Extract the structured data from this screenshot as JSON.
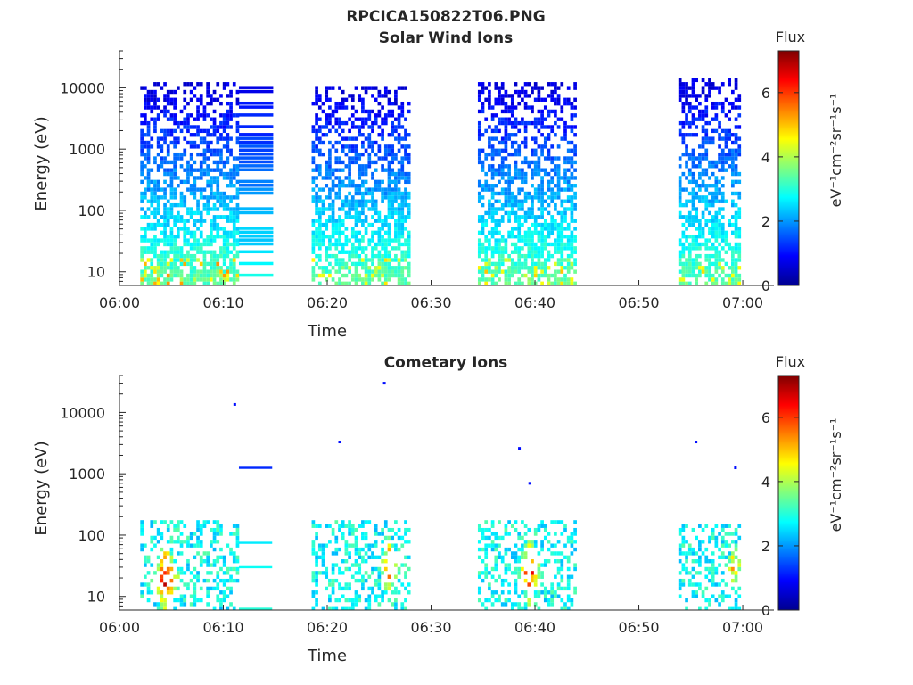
{
  "figure_title": "RPCICA150822T06.PNG",
  "colors": {
    "colormap": [
      "#00008f",
      "#0000ff",
      "#007fff",
      "#00ffff",
      "#7fff7f",
      "#ffff00",
      "#ff7f00",
      "#ff0000",
      "#7f0000"
    ],
    "axis": "#262626"
  },
  "chart_data": [
    {
      "type": "heatmap",
      "title": "Solar Wind Ions",
      "xlabel": "Time",
      "ylabel": "Energy (eV)",
      "y_scale": "log",
      "x_ticks": [
        "06:00",
        "06:10",
        "06:20",
        "06:30",
        "06:40",
        "06:50",
        "07:00"
      ],
      "xlim": [
        "06:00",
        "07:03"
      ],
      "y_ticks": [
        "10",
        "100",
        "1000",
        "10000"
      ],
      "ylim": [
        6,
        40000
      ],
      "colorbar": {
        "label": "Flux",
        "unit": "eV⁻¹cm⁻²sr⁻¹s⁻¹",
        "ticks": [
          "0",
          "2",
          "4",
          "6"
        ],
        "range": [
          0,
          7.3
        ]
      },
      "data_blocks": [
        {
          "start": "06:02",
          "end": "06:11.5",
          "energy_max": 13000,
          "max_flux": 5.5,
          "style": "scatter"
        },
        {
          "start": "06:11.5",
          "end": "06:14.8",
          "energy_max": 13000,
          "max_flux": 2.8,
          "style": "banded"
        },
        {
          "start": "06:18.5",
          "end": "06:27.8",
          "energy_max": 12000,
          "max_flux": 5.0,
          "style": "scatter"
        },
        {
          "start": "06:34.5",
          "end": "06:44",
          "energy_max": 14000,
          "max_flux": 5.0,
          "style": "scatter"
        },
        {
          "start": "06:53.8",
          "end": "06:59.8",
          "energy_max": 15000,
          "max_flux": 4.8,
          "style": "scatter"
        }
      ]
    },
    {
      "type": "heatmap",
      "title": "Cometary Ions",
      "xlabel": "Time",
      "ylabel": "Energy (eV)",
      "y_scale": "log",
      "x_ticks": [
        "06:00",
        "06:10",
        "06:20",
        "06:30",
        "06:40",
        "06:50",
        "07:00"
      ],
      "xlim": [
        "06:00",
        "07:03"
      ],
      "y_ticks": [
        "10",
        "100",
        "1000",
        "10000"
      ],
      "ylim": [
        6,
        40000
      ],
      "colorbar": {
        "label": "Flux",
        "unit": "eV⁻¹cm⁻²sr⁻¹s⁻¹",
        "ticks": [
          "0",
          "2",
          "4",
          "6"
        ],
        "range": [
          0,
          7.3
        ]
      },
      "data_blocks": [
        {
          "start": "06:02",
          "end": "06:11.5",
          "energy_max": 200,
          "max_flux": 7.0,
          "hotspot": "06:04.3",
          "hotspot_energy": 20
        },
        {
          "start": "06:18.5",
          "end": "06:27.8",
          "energy_max": 200,
          "max_flux": 6.0,
          "hotspot": "06:25.8",
          "hotspot_energy": 30
        },
        {
          "start": "06:34.5",
          "end": "06:44",
          "energy_max": 200,
          "max_flux": 6.5,
          "hotspot": "06:39.3",
          "hotspot_energy": 25
        },
        {
          "start": "06:53.8",
          "end": "06:59.8",
          "energy_max": 170,
          "max_flux": 5.2,
          "hotspot": "06:59.0",
          "hotspot_energy": 30
        }
      ],
      "isolated_points": [
        {
          "t": "06:11.1",
          "energy": 13500,
          "flux": 1.0
        },
        {
          "t": "06:21.2",
          "energy": 3300,
          "flux": 1.0
        },
        {
          "t": "06:25.5",
          "energy": 30000,
          "flux": 1.0
        },
        {
          "t": "06:38.5",
          "energy": 2600,
          "flux": 1.0
        },
        {
          "t": "06:39.5",
          "energy": 700,
          "flux": 1.0
        },
        {
          "t": "06:55.5",
          "energy": 3300,
          "flux": 1.0
        },
        {
          "t": "06:59.3",
          "energy": 1250,
          "flux": 1.0
        }
      ],
      "lines": [
        {
          "start": "06:11.5",
          "end": "06:14.7",
          "energy": 1250,
          "flux": 1.2
        },
        {
          "start": "06:11.5",
          "end": "06:14.7",
          "energy": 75,
          "flux": 2.6
        },
        {
          "start": "06:11.5",
          "end": "06:14.7",
          "energy": 30,
          "flux": 2.8
        },
        {
          "start": "06:11.5",
          "end": "06:14.7",
          "energy": 6.3,
          "flux": 3.0
        }
      ]
    }
  ]
}
